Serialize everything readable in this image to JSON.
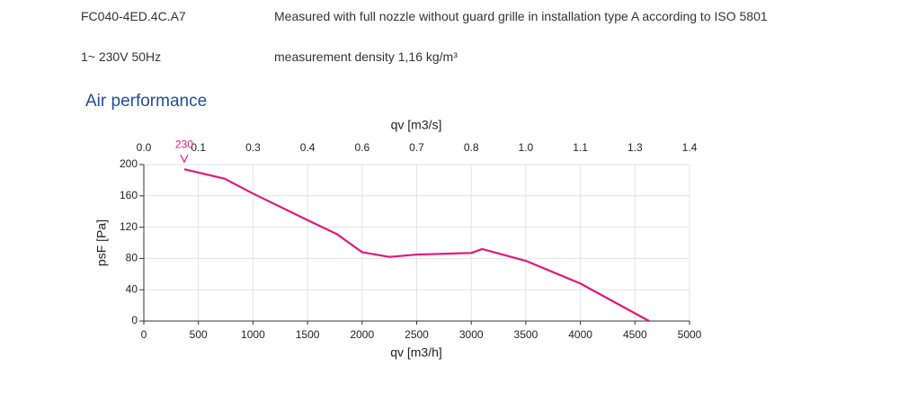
{
  "header": {
    "rows": [
      [
        "FC040-4ED.4C.A7",
        "Measured with full nozzle without guard grille in installation type A according to ISO 5801"
      ],
      [
        "1~ 230V 50Hz",
        "measurement density 1,16 kg/m³"
      ]
    ]
  },
  "section_title": "Air performance",
  "chart_data": {
    "type": "line",
    "x_label": "qv [m3/h]",
    "x2_label": "qv [m3/s]",
    "y_label": "psF [Pa]",
    "annotation": "230",
    "x": [
      370,
      740,
      1000,
      1500,
      1770,
      2000,
      2250,
      2500,
      3000,
      3100,
      3500,
      4000,
      4630
    ],
    "series": [
      {
        "name": "230",
        "color": "#e0197d",
        "values": [
          194,
          182,
          163,
          129,
          111,
          88,
          82,
          85,
          87,
          92,
          77,
          48,
          0
        ]
      }
    ],
    "xlim": [
      0,
      5000
    ],
    "xticks": [
      0,
      500,
      1000,
      1500,
      2000,
      2500,
      3000,
      3500,
      4000,
      4500,
      5000
    ],
    "x2lim": [
      0,
      1.3889
    ],
    "x2ticks": [
      {
        "value": 0,
        "label": "0.0"
      },
      {
        "value": 0.1389,
        "label": "0.1"
      },
      {
        "value": 0.2778,
        "label": "0.3"
      },
      {
        "value": 0.4167,
        "label": "0.4"
      },
      {
        "value": 0.5556,
        "label": "0.6"
      },
      {
        "value": 0.6944,
        "label": "0.7"
      },
      {
        "value": 0.8333,
        "label": "0.8"
      },
      {
        "value": 0.9722,
        "label": "1.0"
      },
      {
        "value": 1.1111,
        "label": "1.1"
      },
      {
        "value": 1.25,
        "label": "1.3"
      },
      {
        "value": 1.3889,
        "label": "1.4"
      }
    ],
    "ylim": [
      0,
      200
    ],
    "yticks": [
      0,
      40,
      80,
      120,
      160,
      200
    ],
    "grid": true
  }
}
